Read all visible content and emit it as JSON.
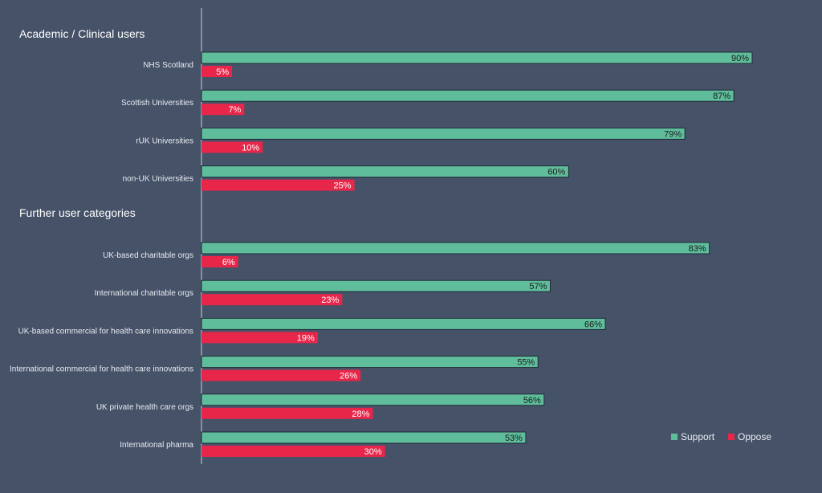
{
  "chart_data": {
    "type": "bar",
    "orientation": "horizontal",
    "groups": [
      {
        "title": "Academic / Clinical users",
        "categories": [
          "NHS Scotland",
          "Scottish Universities",
          "rUK Universities",
          "non-UK Universities"
        ]
      },
      {
        "title": "Further user categories",
        "categories": [
          "UK-based charitable orgs",
          "International charitable orgs",
          "UK-based commercial for health care innovations",
          "International commercial for health care innovations",
          "UK private health care orgs",
          "International pharma"
        ]
      }
    ],
    "series": [
      {
        "name": "Support",
        "color": "#5fbd9c",
        "values": [
          90,
          87,
          79,
          60,
          83,
          57,
          66,
          55,
          56,
          53
        ],
        "labels": [
          "90%",
          "87%",
          "79%",
          "60%",
          "83%",
          "57%",
          "66%",
          "55%",
          "56%",
          "53%"
        ]
      },
      {
        "name": "Oppose",
        "color": "#e8264a",
        "values": [
          5,
          7,
          10,
          25,
          6,
          23,
          19,
          26,
          28,
          30
        ],
        "labels": [
          "5%",
          "7%",
          "10%",
          "25%",
          "6%",
          "23%",
          "19%",
          "26%",
          "28%",
          "30%"
        ]
      }
    ],
    "xlim": [
      0,
      100
    ],
    "legend_position": "bottom-right",
    "grid": false
  }
}
